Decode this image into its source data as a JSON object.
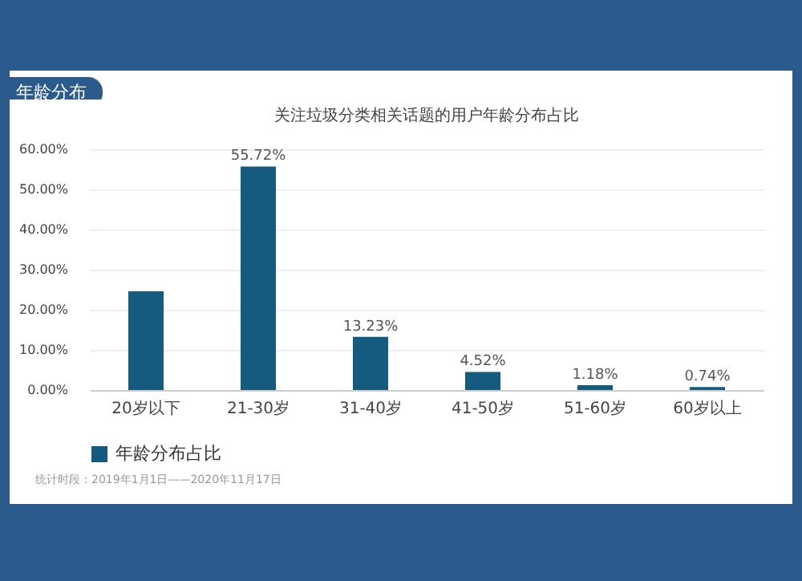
{
  "chart_data": {
    "type": "bar",
    "title": "关注垃圾分类相关话题的用户年龄分布占比",
    "annotations": [
      "年龄分布",
      "统计时段：2019年1月1日——2020年11月17日"
    ],
    "categories": [
      "20岁以下",
      "21-30岁",
      "31-40岁",
      "41-50岁",
      "51-60岁",
      "60岁以上"
    ],
    "series": [
      {
        "name": "年龄分布占比",
        "color": "#155a7f",
        "values": [
          24.6,
          55.72,
          13.23,
          4.52,
          1.18,
          0.74
        ],
        "value_labels": [
          null,
          "55.72%",
          "13.23%",
          "4.52%",
          "1.18%",
          "0.74%"
        ]
      }
    ],
    "ylim": [
      0,
      60
    ],
    "yticks": [
      {
        "value": 0,
        "label": "0.00%"
      },
      {
        "value": 10,
        "label": "10.00%"
      },
      {
        "value": 20,
        "label": "20.00%"
      },
      {
        "value": 30,
        "label": "30.00%"
      },
      {
        "value": 40,
        "label": "40.00%"
      },
      {
        "value": 50,
        "label": "50.00%"
      },
      {
        "value": 60,
        "label": "60.00%"
      }
    ],
    "grid": "y",
    "legend": "bottom"
  }
}
